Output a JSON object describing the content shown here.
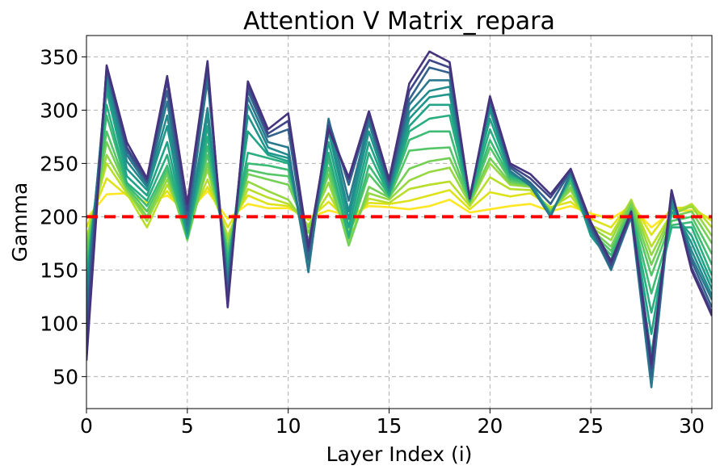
{
  "chart_data": {
    "type": "line",
    "title": "Attention V Matrix_repara",
    "xlabel": "Layer Index (i)",
    "ylabel": "Gamma",
    "xlim": [
      0,
      31
    ],
    "ylim": [
      20,
      370
    ],
    "x_ticks": [
      0,
      5,
      10,
      15,
      20,
      25,
      30
    ],
    "y_ticks": [
      50,
      100,
      150,
      200,
      250,
      300,
      350
    ],
    "grid": true,
    "legend": "none",
    "x": [
      0,
      1,
      2,
      3,
      4,
      5,
      6,
      7,
      8,
      9,
      10,
      11,
      12,
      13,
      14,
      15,
      16,
      17,
      18,
      19,
      20,
      21,
      22,
      23,
      24,
      25,
      26,
      27,
      28,
      29,
      30,
      31
    ],
    "reference_line": {
      "y": 200,
      "color": "#ff0000",
      "style": "dashed"
    },
    "colormap": "viridis (dark purple to yellow)",
    "series": [
      {
        "color": "#fde725",
        "values": [
          198,
          221,
          222,
          213,
          220,
          204,
          224,
          198,
          212,
          208,
          208,
          199,
          206,
          201,
          210,
          209,
          207,
          210,
          216,
          204,
          207,
          210,
          212,
          205,
          210,
          203,
          198,
          210,
          190,
          205,
          206,
          198
        ]
      },
      {
        "color": "#dde318",
        "values": [
          190,
          236,
          220,
          205,
          224,
          198,
          228,
          190,
          220,
          212,
          210,
          197,
          214,
          196,
          213,
          212,
          215,
          220,
          225,
          207,
          223,
          219,
          222,
          209,
          214,
          198,
          190,
          214,
          183,
          208,
          209,
          196
        ]
      },
      {
        "color": "#b8de29",
        "values": [
          180,
          250,
          222,
          190,
          230,
          192,
          235,
          182,
          226,
          218,
          212,
          192,
          222,
          187,
          217,
          213,
          226,
          230,
          233,
          210,
          237,
          226,
          225,
          208,
          220,
          192,
          183,
          216,
          172,
          203,
          212,
          190
        ]
      },
      {
        "color": "#95d840",
        "values": [
          175,
          258,
          225,
          196,
          235,
          188,
          244,
          178,
          233,
          224,
          216,
          190,
          232,
          178,
          222,
          216,
          234,
          242,
          246,
          212,
          250,
          230,
          228,
          206,
          225,
          190,
          178,
          215,
          164,
          202,
          210,
          182
        ]
      },
      {
        "color": "#73d055",
        "values": [
          170,
          270,
          226,
          200,
          240,
          178,
          250,
          172,
          240,
          235,
          230,
          185,
          240,
          173,
          228,
          218,
          245,
          252,
          255,
          214,
          255,
          232,
          229,
          205,
          228,
          188,
          172,
          212,
          155,
          200,
          205,
          175
        ]
      },
      {
        "color": "#55c667",
        "values": [
          160,
          280,
          228,
          205,
          244,
          185,
          258,
          168,
          244,
          240,
          238,
          178,
          246,
          182,
          240,
          218,
          262,
          264,
          265,
          214,
          265,
          234,
          230,
          204,
          232,
          186,
          168,
          208,
          145,
          196,
          200,
          165
        ]
      },
      {
        "color": "#3cbb75",
        "values": [
          150,
          295,
          230,
          210,
          248,
          182,
          266,
          162,
          250,
          248,
          244,
          172,
          254,
          180,
          248,
          220,
          272,
          280,
          280,
          215,
          272,
          236,
          231,
          203,
          235,
          184,
          164,
          206,
          128,
          192,
          195,
          155
        ]
      },
      {
        "color": "#29af7f",
        "values": [
          142,
          305,
          232,
          215,
          258,
          180,
          275,
          158,
          260,
          255,
          250,
          166,
          260,
          182,
          260,
          220,
          280,
          292,
          295,
          216,
          282,
          238,
          232,
          202,
          238,
          182,
          160,
          204,
          110,
          190,
          190,
          145
        ]
      },
      {
        "color": "#20a386",
        "values": [
          135,
          318,
          238,
          220,
          270,
          183,
          285,
          150,
          280,
          258,
          252,
          160,
          270,
          190,
          270,
          222,
          285,
          305,
          305,
          217,
          292,
          240,
          232,
          202,
          238,
          182,
          158,
          203,
          90,
          205,
          182,
          138
        ]
      },
      {
        "color": "#1f968b",
        "values": [
          130,
          325,
          245,
          225,
          285,
          185,
          295,
          145,
          295,
          260,
          255,
          155,
          280,
          198,
          280,
          224,
          292,
          312,
          315,
          218,
          300,
          241,
          231,
          201,
          240,
          184,
          156,
          202,
          70,
          210,
          175,
          132
        ]
      },
      {
        "color": "#238a8d",
        "values": [
          125,
          330,
          252,
          228,
          295,
          188,
          302,
          140,
          305,
          265,
          258,
          150,
          285,
          205,
          288,
          225,
          298,
          318,
          322,
          218,
          305,
          242,
          230,
          201,
          240,
          186,
          153,
          200,
          55,
          215,
          168,
          126
        ]
      },
      {
        "color": "#2a788e",
        "values": [
          115,
          335,
          258,
          230,
          308,
          192,
          328,
          135,
          312,
          270,
          265,
          148,
          292,
          215,
          290,
          227,
          305,
          328,
          328,
          219,
          307,
          243,
          229,
          200,
          241,
          188,
          150,
          200,
          40,
          220,
          162,
          122
        ]
      },
      {
        "color": "#33638d",
        "values": [
          100,
          338,
          262,
          232,
          318,
          198,
          338,
          128,
          318,
          275,
          282,
          160,
          290,
          230,
          294,
          230,
          310,
          340,
          335,
          218,
          310,
          246,
          232,
          212,
          243,
          191,
          152,
          202,
          50,
          222,
          158,
          115
        ]
      },
      {
        "color": "#3f4788",
        "values": [
          85,
          340,
          265,
          234,
          327,
          206,
          342,
          120,
          323,
          278,
          290,
          168,
          285,
          235,
          297,
          233,
          318,
          347,
          340,
          217,
          311,
          248,
          236,
          218,
          244,
          193,
          155,
          203,
          58,
          224,
          152,
          110
        ]
      },
      {
        "color": "#46337e",
        "values": [
          65,
          342,
          270,
          236,
          332,
          212,
          346,
          115,
          327,
          282,
          297,
          172,
          282,
          237,
          299,
          235,
          325,
          355,
          345,
          217,
          313,
          250,
          240,
          221,
          245,
          195,
          158,
          205,
          62,
          225,
          149,
          107
        ]
      }
    ]
  }
}
